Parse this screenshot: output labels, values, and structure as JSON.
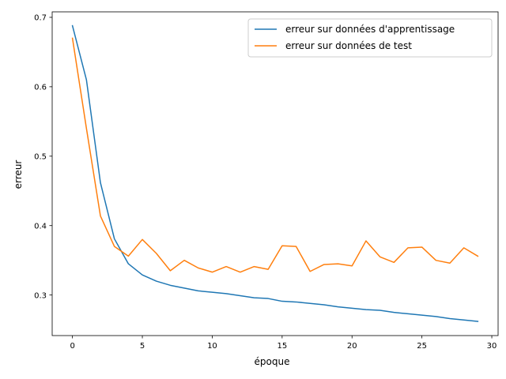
{
  "chart_data": {
    "type": "line",
    "xlabel": "époque",
    "ylabel": "erreur",
    "xlim": [
      -1.45,
      30.45
    ],
    "ylim": [
      0.2416,
      0.7079
    ],
    "xticks": [
      0,
      5,
      10,
      15,
      20,
      25,
      30
    ],
    "xtick_labels": [
      "0",
      "5",
      "10",
      "15",
      "20",
      "25",
      "30"
    ],
    "yticks": [
      0.3,
      0.4,
      0.5,
      0.6,
      0.7
    ],
    "ytick_labels": [
      "0.3",
      "0.4",
      "0.5",
      "0.6",
      "0.7"
    ],
    "grid": false,
    "legend_position": "top-right",
    "x": [
      0,
      1,
      2,
      3,
      4,
      5,
      6,
      7,
      8,
      9,
      10,
      11,
      12,
      13,
      14,
      15,
      16,
      17,
      18,
      19,
      20,
      21,
      22,
      23,
      24,
      25,
      26,
      27,
      28,
      29
    ],
    "series": [
      {
        "name": "erreur sur données d'apprentissage",
        "color": "#1f77b4",
        "values": [
          0.688,
          0.61,
          0.462,
          0.381,
          0.345,
          0.329,
          0.32,
          0.314,
          0.31,
          0.306,
          0.304,
          0.302,
          0.299,
          0.296,
          0.295,
          0.291,
          0.29,
          0.288,
          0.286,
          0.283,
          0.281,
          0.279,
          0.278,
          0.275,
          0.273,
          0.271,
          0.269,
          0.266,
          0.264,
          0.262
        ]
      },
      {
        "name": "erreur sur données de test",
        "color": "#ff7f0e",
        "values": [
          0.67,
          0.54,
          0.414,
          0.37,
          0.356,
          0.38,
          0.36,
          0.335,
          0.35,
          0.339,
          0.333,
          0.341,
          0.333,
          0.341,
          0.337,
          0.371,
          0.37,
          0.334,
          0.344,
          0.345,
          0.342,
          0.378,
          0.355,
          0.347,
          0.368,
          0.369,
          0.35,
          0.346,
          0.368,
          0.356
        ]
      }
    ]
  }
}
